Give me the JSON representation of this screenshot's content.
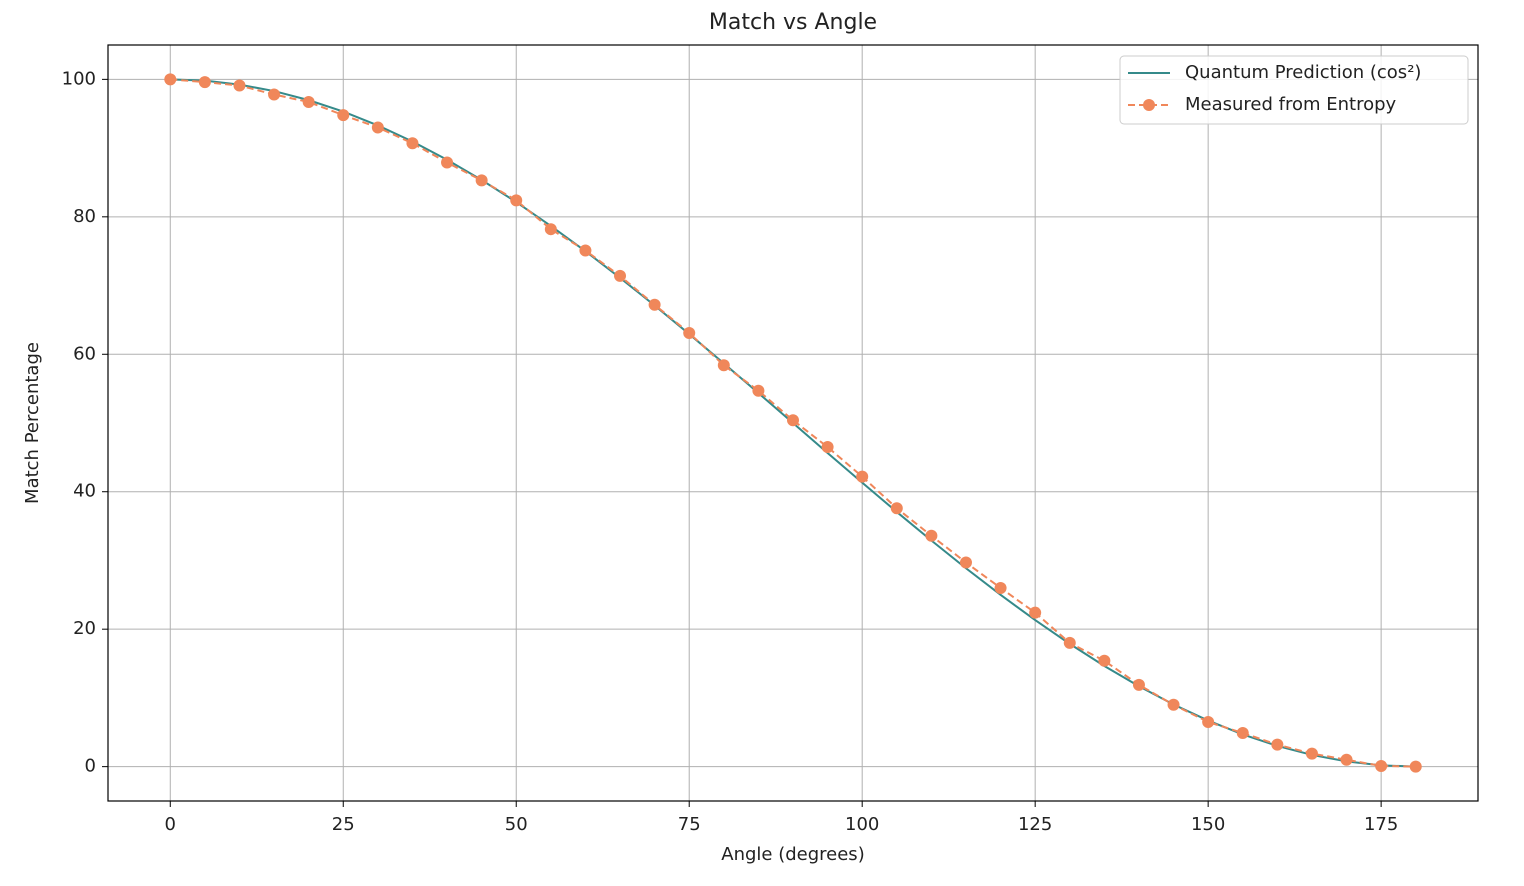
{
  "chart_data": {
    "type": "line",
    "title": "Match vs Angle",
    "x_label": "Angle (degrees)",
    "y_label": "Match Percentage",
    "x": [
      0,
      5,
      10,
      15,
      20,
      25,
      30,
      35,
      40,
      45,
      50,
      55,
      60,
      65,
      70,
      75,
      80,
      85,
      90,
      95,
      100,
      105,
      110,
      115,
      120,
      125,
      130,
      135,
      140,
      145,
      150,
      155,
      160,
      165,
      170,
      175,
      180
    ],
    "series": [
      {
        "name": "Quantum Prediction (cos²)",
        "color": "#358a8a",
        "linestyle": "solid",
        "values": [
          100,
          99.81,
          99.24,
          98.3,
          96.98,
          95.32,
          93.3,
          90.96,
          88.3,
          85.36,
          82.14,
          78.68,
          75,
          71.13,
          67.1,
          62.94,
          58.68,
          54.36,
          50,
          45.64,
          41.32,
          37.06,
          32.9,
          28.87,
          25,
          21.32,
          17.86,
          14.64,
          11.7,
          9.04,
          6.7,
          4.68,
          3.02,
          1.7,
          0.76,
          0.19,
          0
        ]
      },
      {
        "name": "Measured from Entropy",
        "color": "#f0875a",
        "linestyle": "dashed",
        "marker": "o",
        "values": [
          100,
          99.6,
          99.1,
          97.8,
          96.7,
          94.8,
          93,
          90.7,
          87.9,
          85.3,
          82.4,
          78.2,
          75.1,
          71.4,
          67.2,
          63.1,
          58.4,
          54.7,
          50.4,
          46.5,
          42.2,
          37.6,
          33.6,
          29.7,
          26,
          22.4,
          18,
          15.4,
          11.9,
          9,
          6.5,
          4.9,
          3.2,
          1.9,
          1,
          0.1,
          0
        ]
      }
    ],
    "xlim": [
      -9,
      189
    ],
    "ylim": [
      -5,
      105
    ],
    "xticks": [
      0,
      25,
      50,
      75,
      100,
      125,
      150,
      175
    ],
    "yticks": [
      0,
      20,
      40,
      60,
      80,
      100
    ],
    "grid": true,
    "legend": "upper right"
  }
}
